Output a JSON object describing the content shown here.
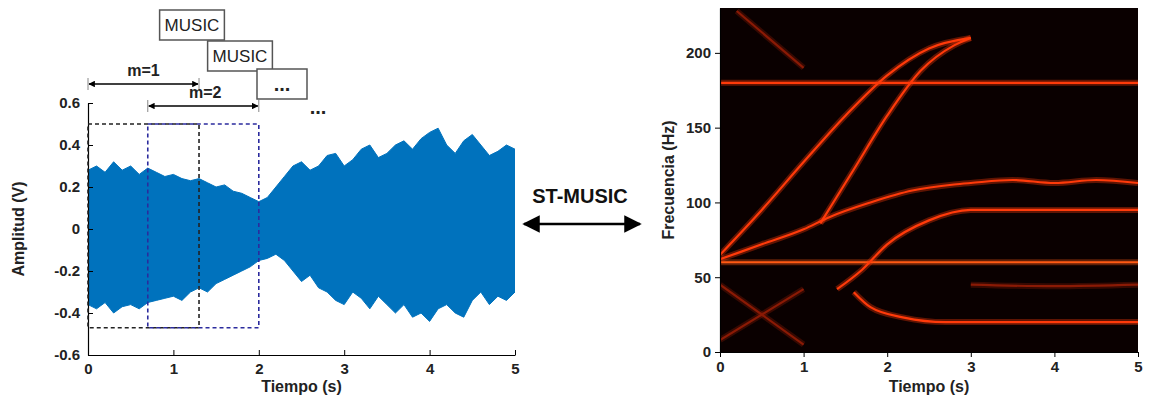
{
  "chart_data": [
    {
      "type": "area",
      "x": [
        0,
        0.1,
        0.2,
        0.3,
        0.4,
        0.5,
        0.6,
        0.7,
        0.8,
        0.9,
        1,
        1.1,
        1.2,
        1.3,
        1.4,
        1.5,
        1.6,
        1.7,
        1.8,
        1.9,
        2,
        2.1,
        2.2,
        2.3,
        2.4,
        2.5,
        2.6,
        2.7,
        2.8,
        2.9,
        3,
        3.1,
        3.2,
        3.3,
        3.4,
        3.5,
        3.6,
        3.7,
        3.8,
        3.9,
        4,
        4.1,
        4.2,
        4.3,
        4.4,
        4.5,
        4.6,
        4.7,
        4.8,
        4.9,
        5
      ],
      "series": [
        {
          "values": [
            0.28,
            0.3,
            0.27,
            0.32,
            0.28,
            0.3,
            0.26,
            0.29,
            0.27,
            0.25,
            0.26,
            0.24,
            0.23,
            0.24,
            0.22,
            0.2,
            0.21,
            0.18,
            0.17,
            0.15,
            0.13,
            0.15,
            0.2,
            0.25,
            0.3,
            0.32,
            0.28,
            0.3,
            0.35,
            0.36,
            0.3,
            0.33,
            0.38,
            0.4,
            0.34,
            0.36,
            0.4,
            0.42,
            0.38,
            0.43,
            0.46,
            0.48,
            0.4,
            0.36,
            0.42,
            0.45,
            0.4,
            0.35,
            0.37,
            0.4,
            0.38
          ]
        },
        {
          "values": [
            -0.36,
            -0.38,
            -0.35,
            -0.4,
            -0.37,
            -0.36,
            -0.38,
            -0.35,
            -0.34,
            -0.33,
            -0.32,
            -0.34,
            -0.3,
            -0.28,
            -0.3,
            -0.26,
            -0.24,
            -0.22,
            -0.2,
            -0.18,
            -0.15,
            -0.14,
            -0.12,
            -0.15,
            -0.2,
            -0.25,
            -0.22,
            -0.28,
            -0.3,
            -0.34,
            -0.36,
            -0.3,
            -0.33,
            -0.38,
            -0.32,
            -0.36,
            -0.4,
            -0.36,
            -0.42,
            -0.4,
            -0.44,
            -0.38,
            -0.36,
            -0.4,
            -0.42,
            -0.34,
            -0.3,
            -0.36,
            -0.32,
            -0.34,
            -0.3
          ]
        }
      ],
      "color": "#0072bd",
      "x_label": "Tiempo (s)",
      "y_label": "Amplitud (V)",
      "xlim": [
        0,
        5
      ],
      "xticks": [
        0,
        1,
        2,
        3,
        4,
        5
      ],
      "ylim": [
        -0.6,
        0.6
      ],
      "yticks": [
        -0.6,
        -0.4,
        -0.2,
        0,
        0.2,
        0.4,
        0.6
      ]
    },
    {
      "type": "line",
      "x_label": "Tiempo (s)",
      "y_label": "Frecuencia (Hz)",
      "xlim": [
        0,
        5
      ],
      "xticks": [
        0,
        1,
        2,
        3,
        4,
        5
      ],
      "ylim": [
        0,
        230
      ],
      "yticks": [
        0,
        50,
        100,
        150,
        200
      ],
      "series": [
        {
          "color": "#ff3a0a",
          "x": [
            0,
            5
          ],
          "values": [
            180,
            180
          ]
        },
        {
          "color": "#ff5a14",
          "x": [
            0,
            5
          ],
          "values": [
            60,
            60
          ]
        },
        {
          "color": "#ff3a0a",
          "x": [
            0,
            0.5,
            1,
            1.5,
            2,
            2.5,
            3
          ],
          "values": [
            65,
            95,
            127,
            158,
            185,
            203,
            210
          ]
        },
        {
          "color": "#ff3a0a",
          "x": [
            1.2,
            1.6,
            2,
            2.4,
            2.8,
            3
          ],
          "values": [
            86,
            122,
            158,
            188,
            205,
            210
          ]
        },
        {
          "color": "#ff3a0a",
          "x": [
            0,
            0.5,
            1,
            1.3,
            1.8,
            2.3,
            2.8,
            3,
            3.5,
            4,
            4.5,
            5
          ],
          "values": [
            62,
            72,
            82,
            90,
            100,
            108,
            112,
            113,
            115,
            113,
            115,
            113
          ]
        },
        {
          "color": "#ff3a0a",
          "x": [
            1.4,
            1.7,
            2,
            2.5,
            3,
            4,
            5
          ],
          "values": [
            42,
            55,
            72,
            88,
            95,
            95,
            95
          ]
        },
        {
          "color": "#ff3a0a",
          "x": [
            1.6,
            1.8,
            2.2,
            2.7,
            3,
            4,
            5
          ],
          "values": [
            40,
            30,
            23,
            20,
            20,
            20,
            20
          ]
        },
        {
          "color": "#8a1a05",
          "x": [
            3,
            4,
            5
          ],
          "values": [
            45,
            44,
            45
          ]
        },
        {
          "color": "#8a1a05",
          "x": [
            0,
            1
          ],
          "values": [
            45,
            5
          ]
        },
        {
          "color": "#8a1a05",
          "x": [
            0,
            1
          ],
          "values": [
            8,
            42
          ]
        },
        {
          "color": "#8a1a05",
          "x": [
            0.2,
            1
          ],
          "values": [
            228,
            190
          ]
        }
      ]
    }
  ],
  "diagram": {
    "windows": [
      {
        "label": "m=1",
        "start": 0,
        "end": 1.3,
        "low": -0.47,
        "high": 0.5,
        "color": "#222222"
      },
      {
        "label": "m=2",
        "start": 0.7,
        "end": 2.0,
        "low": -0.47,
        "high": 0.5,
        "color": "#2b2b9e"
      }
    ],
    "boxes": [
      "MUSIC",
      "MUSIC",
      "..."
    ],
    "continuation": "...",
    "transform": "ST-MUSIC"
  }
}
